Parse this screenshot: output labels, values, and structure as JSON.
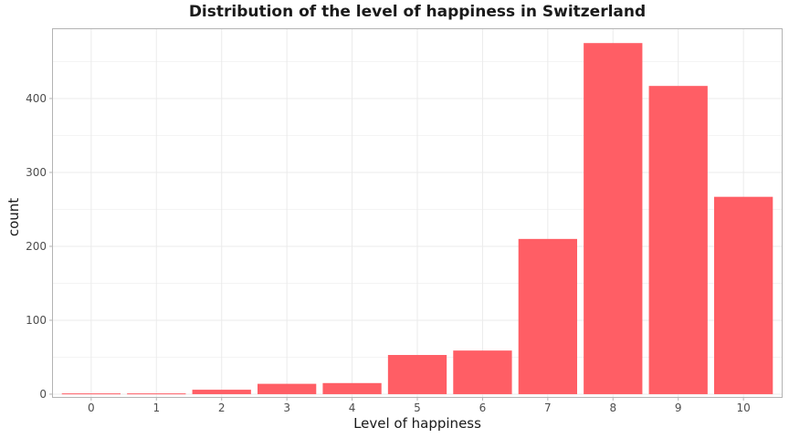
{
  "chart_data": {
    "type": "bar",
    "title": "Distribution of the level of happiness in Switzerland",
    "xlabel": "Level of happiness",
    "ylabel": "count",
    "categories": [
      "0",
      "1",
      "2",
      "3",
      "4",
      "5",
      "6",
      "7",
      "8",
      "9",
      "10"
    ],
    "values": [
      1,
      1,
      6,
      14,
      15,
      53,
      59,
      210,
      475,
      417,
      267
    ],
    "ylim": [
      -5,
      495
    ],
    "yticks": [
      0,
      100,
      200,
      300,
      400
    ],
    "bar_color": "#FF5E65",
    "grid": true,
    "legend": "none"
  }
}
